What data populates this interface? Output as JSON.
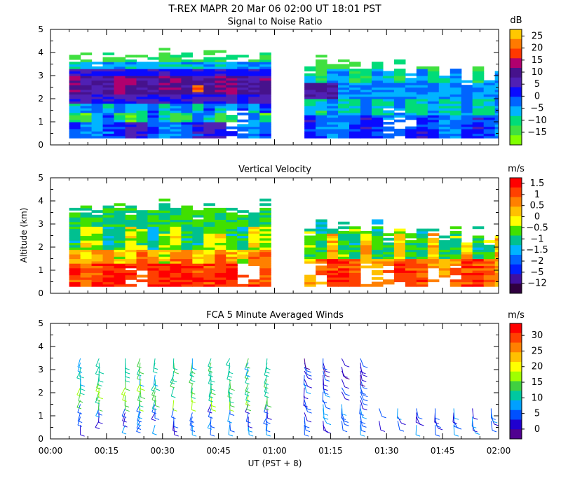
{
  "figure": {
    "title": "T-REX   MAPR 20 Mar 06   02:00 UT   18:01   PST",
    "xlabel": "UT  (PST + 8)",
    "ylabel": "Altitude (km)",
    "x_tick_labels": [
      "00:00",
      "00:15",
      "00:30",
      "00:45",
      "01:00",
      "01:15",
      "01:30",
      "01:45",
      "02:00"
    ],
    "y_tick_labels": [
      "0",
      "1",
      "2",
      "3",
      "4",
      "5"
    ]
  },
  "chart_data": [
    {
      "type": "heatmap",
      "title": "Signal to Noise Ratio",
      "unit": "dB",
      "xlim": [
        0,
        120
      ],
      "ylim": [
        0,
        5
      ],
      "gap_minutes": [
        58.5,
        65.5
      ],
      "colorbar_labels": [
        "25",
        "20",
        "15",
        "10",
        "5",
        "0",
        "−5",
        "−10",
        "−15"
      ],
      "colorbar_colors": [
        "#ffc800",
        "#ff7a00",
        "#ff3800",
        "#b0006e",
        "#46128c",
        "#5020b4",
        "#0a0aff",
        "#0064ff",
        "#00b4ff",
        "#00dc78",
        "#40e040",
        "#80ff00"
      ]
    },
    {
      "type": "heatmap",
      "title": "Vertical Velocity",
      "unit": "m/s",
      "xlim": [
        0,
        120
      ],
      "ylim": [
        0,
        5
      ],
      "colorbar_labels": [
        "1.5",
        "1",
        "0.5",
        "0",
        "−0.5",
        "−1",
        "−1.5",
        "−2",
        "−5",
        "−12"
      ],
      "colorbar_colors": [
        "#ff0000",
        "#ff4000",
        "#ff8000",
        "#ffc000",
        "#ffff00",
        "#40e000",
        "#00c090",
        "#00b4ff",
        "#0064ff",
        "#0020ff",
        "#4010a0",
        "#300040"
      ]
    },
    {
      "type": "wind-barbs",
      "title": "FCA 5 Minute Averaged Winds",
      "unit": "m/s",
      "xlim": [
        0,
        120
      ],
      "ylim": [
        0,
        5
      ],
      "colorbar_labels": [
        "30",
        "25",
        "20",
        "15",
        "10",
        "5",
        "0"
      ],
      "colorbar_colors": [
        "#ff0000",
        "#ff4000",
        "#ff8000",
        "#ffc000",
        "#ffff00",
        "#a0ff00",
        "#40d040",
        "#00c8a0",
        "#00a0ff",
        "#0050ff",
        "#2000d0",
        "#500090"
      ],
      "profile_times_min": [
        8,
        13,
        20,
        24,
        28,
        33,
        38,
        43,
        48,
        53,
        58,
        68,
        73,
        78,
        83,
        88,
        93,
        98,
        103,
        108,
        113,
        118
      ]
    }
  ]
}
